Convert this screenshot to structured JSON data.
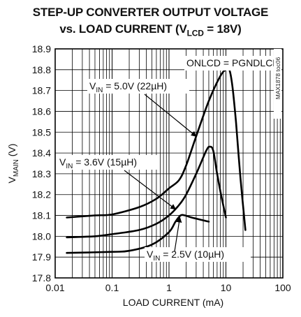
{
  "chart_data": {
    "type": "line",
    "title": "STEP-UP CONVERTER OUTPUT VOLTAGE",
    "subtitle": {
      "prefix": "vs. LOAD CURRENT (V",
      "sub": "LCD",
      "suffix": " = 18V)"
    },
    "xlabel": "LOAD CURRENT (mA)",
    "ylabel": {
      "main": "V",
      "sub": "MAIN",
      "unit": " (V)"
    },
    "xscale": "log",
    "xlim": [
      0.01,
      100
    ],
    "ylim": [
      17.8,
      18.9
    ],
    "x_ticks": [
      {
        "v": 0.01,
        "label": "0.01"
      },
      {
        "v": 0.1,
        "label": "0.1"
      },
      {
        "v": 1,
        "label": "1"
      },
      {
        "v": 10,
        "label": "10"
      },
      {
        "v": 100,
        "label": "100"
      }
    ],
    "y_ticks": [
      {
        "v": 17.8,
        "label": "17.8"
      },
      {
        "v": 17.9,
        "label": "17.9"
      },
      {
        "v": 18.0,
        "label": "18.0"
      },
      {
        "v": 18.1,
        "label": "18.1"
      },
      {
        "v": 18.2,
        "label": "18.2"
      },
      {
        "v": 18.3,
        "label": "18.3"
      },
      {
        "v": 18.4,
        "label": "18.4"
      },
      {
        "v": 18.5,
        "label": "18.5"
      },
      {
        "v": 18.6,
        "label": "18.6"
      },
      {
        "v": 18.7,
        "label": "18.7"
      },
      {
        "v": 18.8,
        "label": "18.8"
      },
      {
        "v": 18.9,
        "label": "18.9"
      }
    ],
    "grid": true,
    "series": [
      {
        "name": "VIN = 5.0V (22µH)",
        "points": [
          [
            0.016,
            18.09
          ],
          [
            0.05,
            18.1
          ],
          [
            0.1,
            18.105
          ],
          [
            0.3,
            18.14
          ],
          [
            0.6,
            18.18
          ],
          [
            1.0,
            18.23
          ],
          [
            1.5,
            18.27
          ],
          [
            2.0,
            18.34
          ],
          [
            3.0,
            18.48
          ],
          [
            5.0,
            18.65
          ],
          [
            8.0,
            18.77
          ],
          [
            10.0,
            18.8
          ],
          [
            11.5,
            18.8
          ],
          [
            13.0,
            18.72
          ],
          [
            15.0,
            18.55
          ],
          [
            18.0,
            18.28
          ],
          [
            22.0,
            18.03
          ]
        ]
      },
      {
        "name": "VIN = 3.6V (15µH)",
        "points": [
          [
            0.016,
            17.995
          ],
          [
            0.05,
            18.0
          ],
          [
            0.1,
            18.01
          ],
          [
            0.3,
            18.03
          ],
          [
            0.6,
            18.06
          ],
          [
            1.0,
            18.1
          ],
          [
            1.5,
            18.15
          ],
          [
            2.0,
            18.2
          ],
          [
            3.0,
            18.3
          ],
          [
            4.5,
            18.41
          ],
          [
            5.2,
            18.43
          ],
          [
            6.0,
            18.41
          ],
          [
            7.0,
            18.3
          ],
          [
            8.5,
            18.18
          ],
          [
            10.0,
            18.09
          ]
        ]
      },
      {
        "name": "VIN = 2.5V (10µH)",
        "points": [
          [
            0.016,
            17.92
          ],
          [
            0.1,
            17.925
          ],
          [
            0.2,
            17.93
          ],
          [
            0.5,
            17.96
          ],
          [
            1.0,
            18.02
          ],
          [
            1.3,
            18.07
          ],
          [
            1.6,
            18.1
          ],
          [
            1.9,
            18.1
          ],
          [
            2.5,
            18.09
          ],
          [
            5.0,
            18.07
          ]
        ]
      }
    ],
    "annotations": [
      {
        "id": "onlcd",
        "text": "ONLCD = PGNDLCD"
      },
      {
        "id": "s50",
        "pre": "V",
        "sub": "IN",
        "post": " = 5.0V (22µH)",
        "arrow_to": [
          3.0,
          18.48
        ]
      },
      {
        "id": "s36",
        "pre": "V",
        "sub": "IN",
        "post": " = 3.6V (15µH)",
        "arrow_to": [
          1.3,
          18.13
        ]
      },
      {
        "id": "s25",
        "pre": "V",
        "sub": "IN",
        "post": " = 2.5V (10µH)",
        "arrow_to": [
          1.55,
          18.09
        ]
      }
    ],
    "watermark": "MAX1878 toc06"
  }
}
